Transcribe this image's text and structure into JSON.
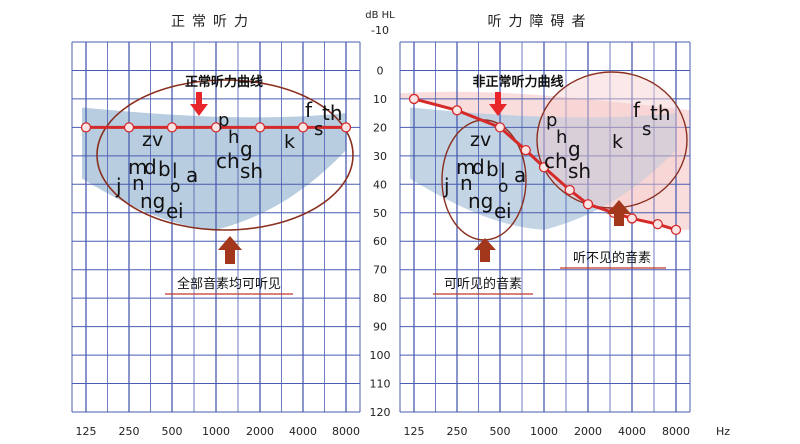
{
  "chart_data": [
    {
      "type": "line",
      "title": "正常听力",
      "x": [
        "125",
        "250",
        "500",
        "1000",
        "2000",
        "4000",
        "8000"
      ],
      "xlabel": "Hz",
      "ylabel_top": "dB HL",
      "y_ticks": [
        "-10",
        "0",
        "10",
        "20",
        "30",
        "40",
        "50",
        "60",
        "70",
        "80",
        "90",
        "100",
        "110",
        "120"
      ],
      "ylim": [
        -10,
        120
      ],
      "y_inverted": true,
      "grid": true,
      "series": [
        {
          "name": "",
          "x": [
            "125",
            "250",
            "500",
            "1000",
            "2000",
            "4000",
            "8000"
          ],
          "values": [
            20,
            20,
            20,
            20,
            20,
            20,
            20
          ],
          "color": "#d42a2a"
        }
      ],
      "curve_label": "正常听力曲线",
      "bottom_label": "全部音素均可听见",
      "phonemes": [
        "zv",
        "p",
        "h",
        "g",
        "ch",
        "sh",
        "k",
        "f",
        "s",
        "th",
        "j",
        "m",
        "d",
        "b",
        "l",
        "n",
        "o",
        "a",
        "ng",
        "e",
        "i"
      ]
    },
    {
      "type": "line",
      "title": "听力障碍者",
      "x": [
        "125",
        "250",
        "500",
        "1000",
        "2000",
        "4000",
        "8000"
      ],
      "xlabel": "Hz",
      "grid": true,
      "series": [
        {
          "name": "",
          "x": [
            "125",
            "250",
            "500",
            "750",
            "1000",
            "1500",
            "2000",
            "3000",
            "4000",
            "6000",
            "8000"
          ],
          "values": [
            10,
            14,
            20,
            28,
            34,
            42,
            47,
            50,
            52,
            54,
            56
          ],
          "color": "#d42a2a"
        }
      ],
      "curve_label": "非正常听力曲线",
      "audible_label": "可听见的音素",
      "inaudible_label": "听不见的音素",
      "phonemes": [
        "zv",
        "p",
        "h",
        "g",
        "ch",
        "sh",
        "k",
        "f",
        "s",
        "th",
        "j",
        "m",
        "d",
        "b",
        "l",
        "n",
        "o",
        "a",
        "ng",
        "e",
        "i"
      ]
    }
  ],
  "colors": {
    "grid": "#4a5db0",
    "curve": "#d42a2a",
    "speech_banana": "#b8cde0",
    "ellipse": "#8a2f1f",
    "arrow_red": "#e8262a",
    "arrow_brown": "#a2371c",
    "underline": "#c0392b"
  }
}
